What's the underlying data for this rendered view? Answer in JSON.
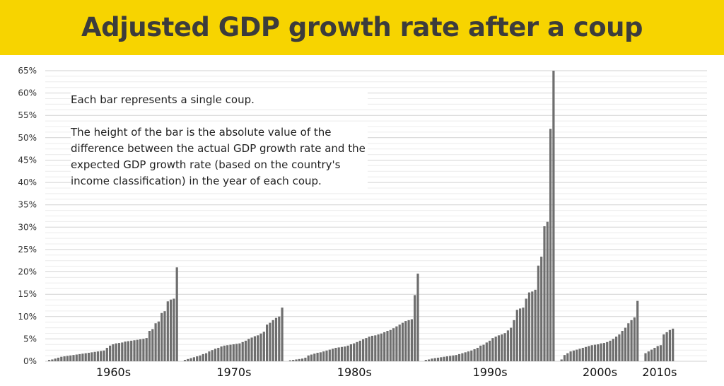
{
  "title": "Adjusted GDP growth rate after a coup",
  "annotation": {
    "line1": "Each bar represents a single coup.",
    "line2": "The height of the bar is the absolute value of the difference between the actual GDP growth rate and the expected GDP growth rate (based on the country's income classification) in the year of each coup."
  },
  "colors": {
    "band": "#f7d400",
    "bar": "#6e6e6e",
    "grid": "#dcdcdc",
    "title": "#3c3c3c"
  },
  "chart_data": {
    "type": "bar",
    "title": "Adjusted GDP growth rate after a coup",
    "ylim": [
      0,
      65
    ],
    "yticks": [
      "0%",
      "5%",
      "10%",
      "15%",
      "20%",
      "25%",
      "30%",
      "35%",
      "40%",
      "45%",
      "50%",
      "55%",
      "60%",
      "65%"
    ],
    "grid": true,
    "series": [
      {
        "name": "1960s",
        "values": [
          0.3,
          0.4,
          0.6,
          0.8,
          1.0,
          1.1,
          1.2,
          1.3,
          1.4,
          1.5,
          1.6,
          1.7,
          1.8,
          1.9,
          2.0,
          2.1,
          2.2,
          2.3,
          2.4,
          3.0,
          3.5,
          3.8,
          4.0,
          4.1,
          4.2,
          4.4,
          4.5,
          4.6,
          4.7,
          4.8,
          4.9,
          5.0,
          5.2,
          6.8,
          7.2,
          8.5,
          8.9,
          10.8,
          11.2,
          13.4,
          13.8,
          14.0,
          21.0
        ]
      },
      {
        "name": "1970s",
        "values": [
          0.3,
          0.5,
          0.7,
          0.9,
          1.1,
          1.3,
          1.6,
          1.8,
          2.2,
          2.5,
          2.8,
          3.0,
          3.3,
          3.5,
          3.6,
          3.7,
          3.8,
          3.9,
          4.0,
          4.3,
          4.6,
          5.0,
          5.3,
          5.6,
          5.8,
          6.2,
          6.6,
          8.2,
          8.6,
          9.2,
          9.7,
          10.0,
          12.0
        ]
      },
      {
        "name": "1980s",
        "values": [
          0.2,
          0.3,
          0.4,
          0.5,
          0.6,
          0.8,
          1.3,
          1.5,
          1.7,
          1.9,
          2.0,
          2.2,
          2.4,
          2.6,
          2.8,
          3.0,
          3.1,
          3.2,
          3.3,
          3.5,
          3.8,
          4.0,
          4.3,
          4.6,
          4.9,
          5.2,
          5.5,
          5.7,
          5.8,
          6.0,
          6.2,
          6.5,
          6.8,
          7.0,
          7.4,
          7.8,
          8.2,
          8.6,
          9.0,
          9.2,
          9.4,
          14.8,
          19.6
        ]
      },
      {
        "name": "1990s",
        "values": [
          0.3,
          0.4,
          0.6,
          0.7,
          0.8,
          0.9,
          1.0,
          1.1,
          1.2,
          1.3,
          1.4,
          1.6,
          1.8,
          2.0,
          2.2,
          2.4,
          2.7,
          3.0,
          3.5,
          3.7,
          4.2,
          4.6,
          5.2,
          5.5,
          5.8,
          6.0,
          6.3,
          6.9,
          7.5,
          9.2,
          11.5,
          11.8,
          12.0,
          14.0,
          15.4,
          15.6,
          16.0,
          21.4,
          23.4,
          30.2,
          31.2,
          52.0,
          65.0
        ]
      },
      {
        "name": "2000s",
        "values": [
          0.4,
          1.4,
          1.8,
          2.2,
          2.4,
          2.6,
          2.8,
          3.0,
          3.2,
          3.4,
          3.6,
          3.7,
          3.8,
          4.0,
          4.1,
          4.3,
          4.6,
          5.0,
          5.5,
          6.0,
          6.8,
          7.5,
          8.5,
          9.2,
          9.8,
          13.5
        ]
      },
      {
        "name": "2010s",
        "values": [
          1.8,
          2.2,
          2.6,
          3.0,
          3.4,
          3.6,
          6.0,
          6.5,
          7.0,
          7.3
        ]
      }
    ]
  }
}
